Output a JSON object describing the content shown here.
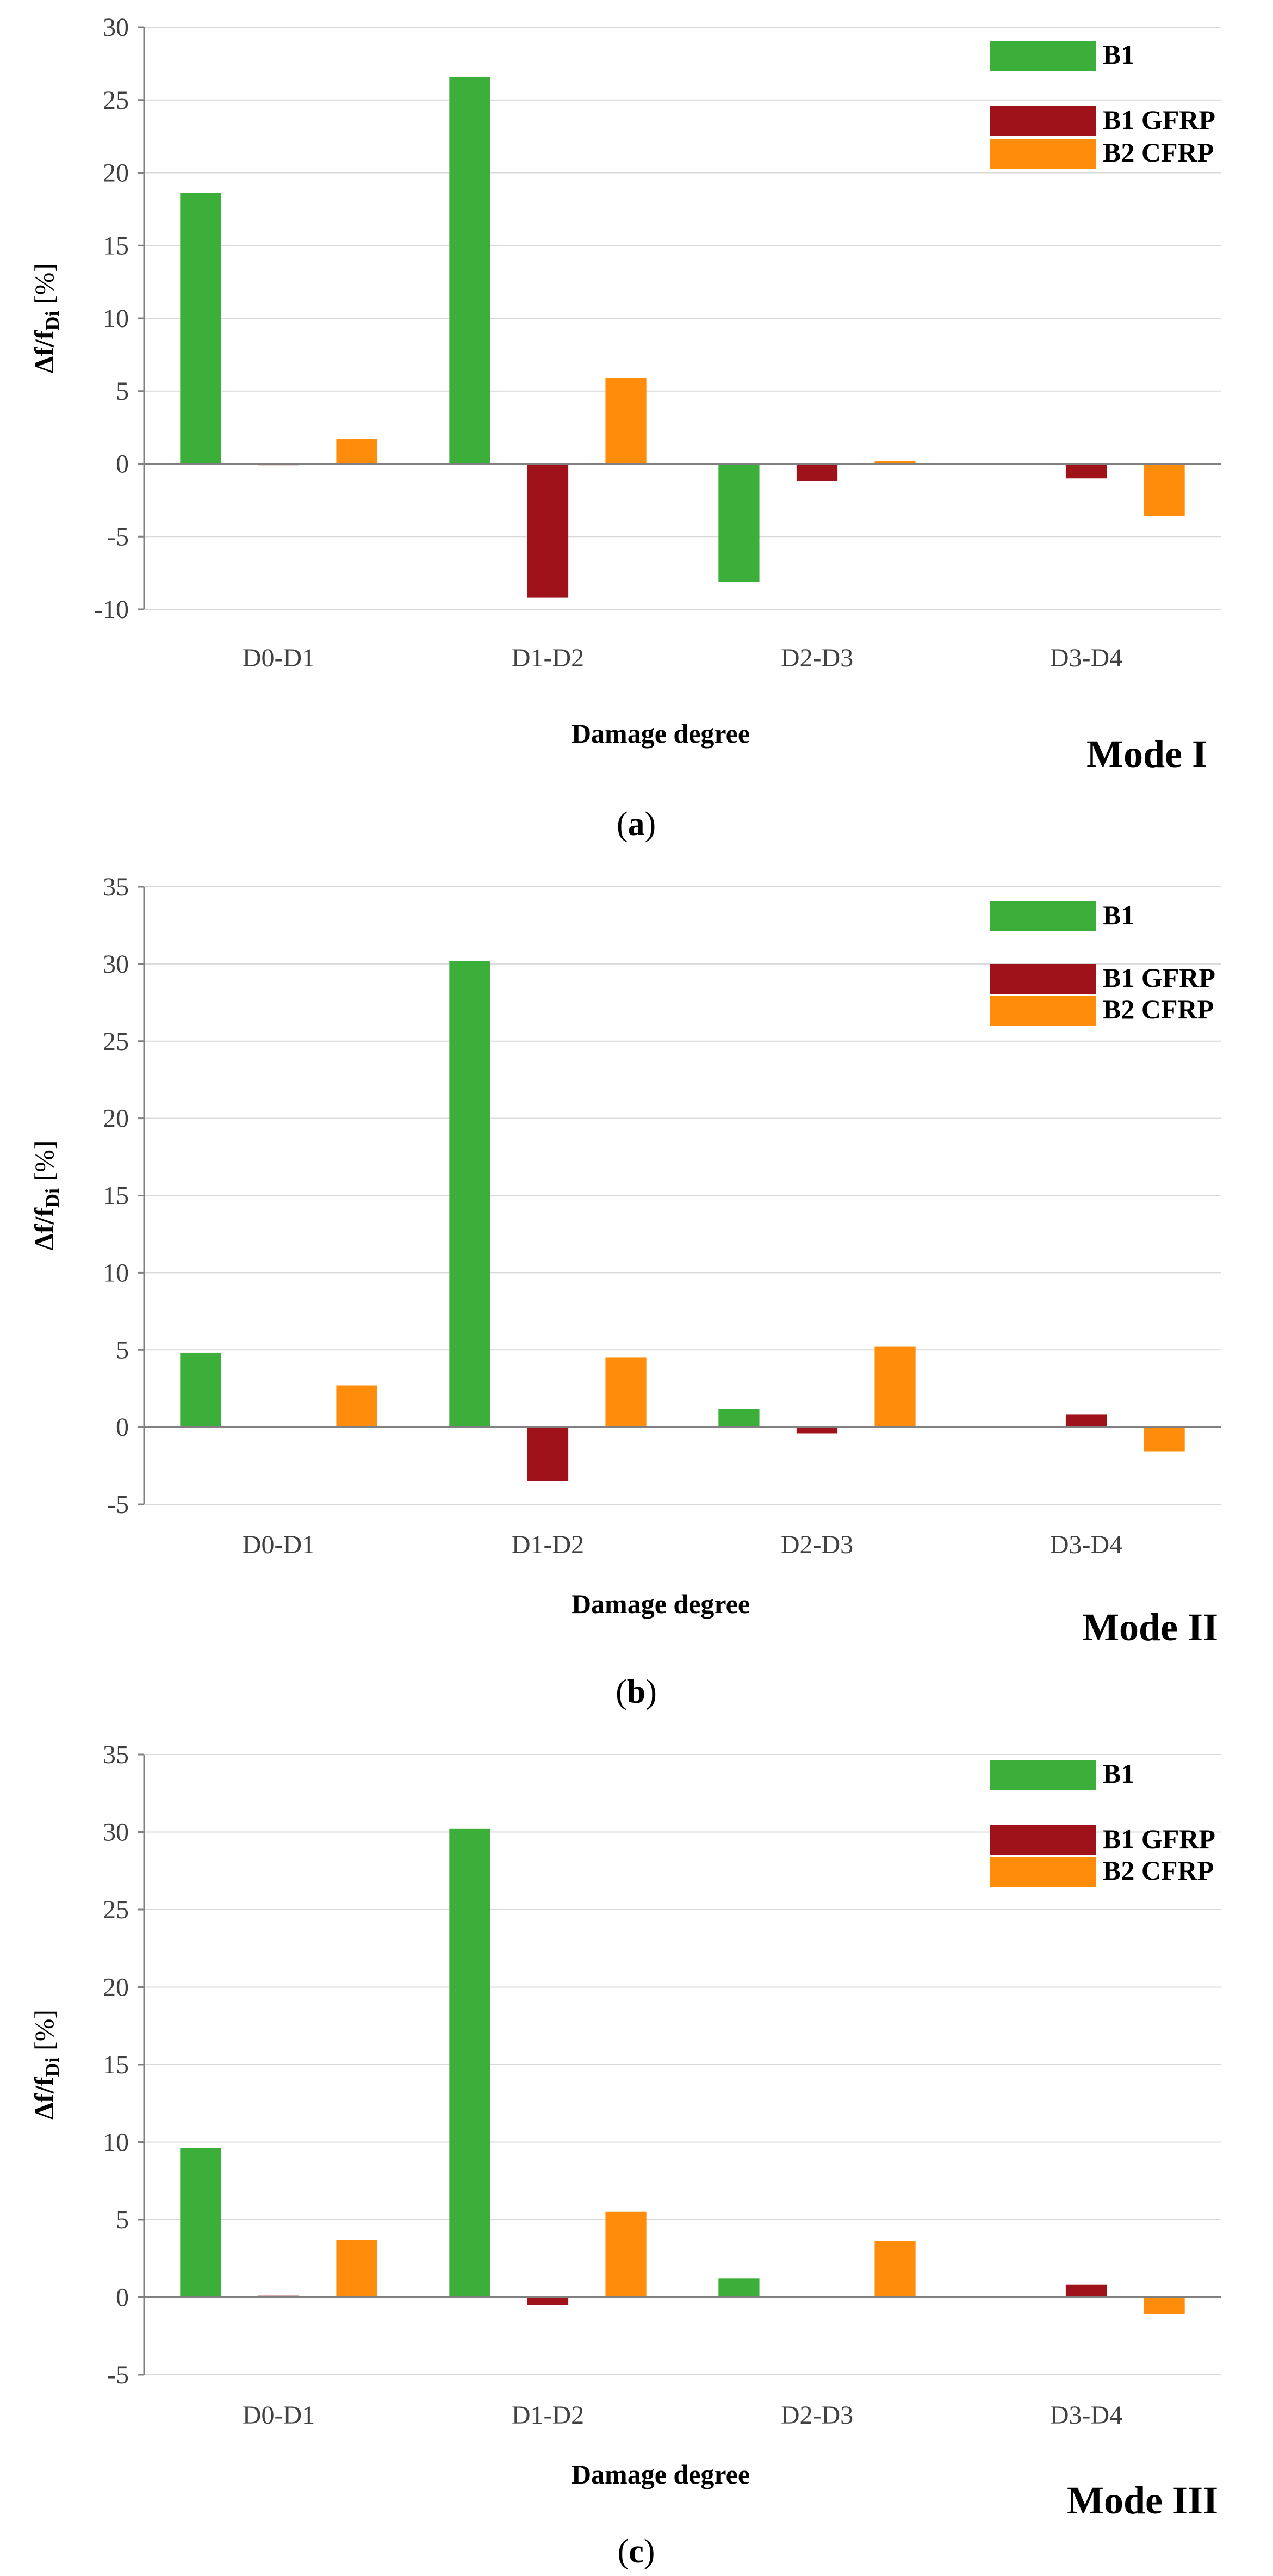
{
  "colors": {
    "B1": "#3cae3a",
    "B1 GFRP": "#a01219",
    "B2 CFRP": "#ff8c0a",
    "axis": "#808080",
    "grid": "#d9d9d9"
  },
  "chart_data": [
    {
      "type": "bar",
      "panel_letter": "a",
      "mode_label": "Mode I",
      "xlabel": "Damage degree",
      "ylabel_main": "Δf/f",
      "ylabel_sub": "Di",
      "ylabel_unit": " [%]",
      "ylim": [
        -10,
        30
      ],
      "ytick_step": 5,
      "categories": [
        "D0-D1",
        "D1-D2",
        "D2-D3",
        "D3-D4"
      ],
      "series": [
        {
          "name": "B1",
          "values": [
            18.6,
            26.6,
            -8.1,
            0
          ]
        },
        {
          "name": "B1 GFRP",
          "values": [
            -0.1,
            -9.2,
            -1.2,
            -1.0
          ]
        },
        {
          "name": "B2 CFRP",
          "values": [
            1.7,
            5.9,
            0.2,
            -3.6
          ]
        }
      ],
      "legend_position": "top-right"
    },
    {
      "type": "bar",
      "panel_letter": "b",
      "mode_label": "Mode II",
      "xlabel": "Damage degree",
      "ylabel_main": "Δf/f",
      "ylabel_sub": "Di",
      "ylabel_unit": " [%]",
      "ylim": [
        -5,
        35
      ],
      "ytick_step": 5,
      "categories": [
        "D0-D1",
        "D1-D2",
        "D2-D3",
        "D3-D4"
      ],
      "series": [
        {
          "name": "B1",
          "values": [
            4.8,
            30.2,
            1.2,
            0
          ]
        },
        {
          "name": "B1 GFRP",
          "values": [
            0,
            -3.5,
            -0.4,
            0.8
          ]
        },
        {
          "name": "B2 CFRP",
          "values": [
            2.7,
            4.5,
            5.2,
            -1.6
          ]
        }
      ],
      "legend_position": "top-right"
    },
    {
      "type": "bar",
      "panel_letter": "c",
      "mode_label": "Mode III",
      "xlabel": "Damage degree",
      "ylabel_main": "Δf/f",
      "ylabel_sub": "Di",
      "ylabel_unit": " [%]",
      "ylim": [
        -5,
        35
      ],
      "ytick_step": 5,
      "categories": [
        "D0-D1",
        "D1-D2",
        "D2-D3",
        "D3-D4"
      ],
      "series": [
        {
          "name": "B1",
          "values": [
            9.6,
            30.2,
            1.2,
            0
          ]
        },
        {
          "name": "B1 GFRP",
          "values": [
            0.1,
            -0.5,
            0,
            0.8
          ]
        },
        {
          "name": "B2 CFRP",
          "values": [
            3.7,
            5.5,
            3.6,
            -1.1
          ]
        }
      ],
      "legend_position": "top-right"
    }
  ]
}
